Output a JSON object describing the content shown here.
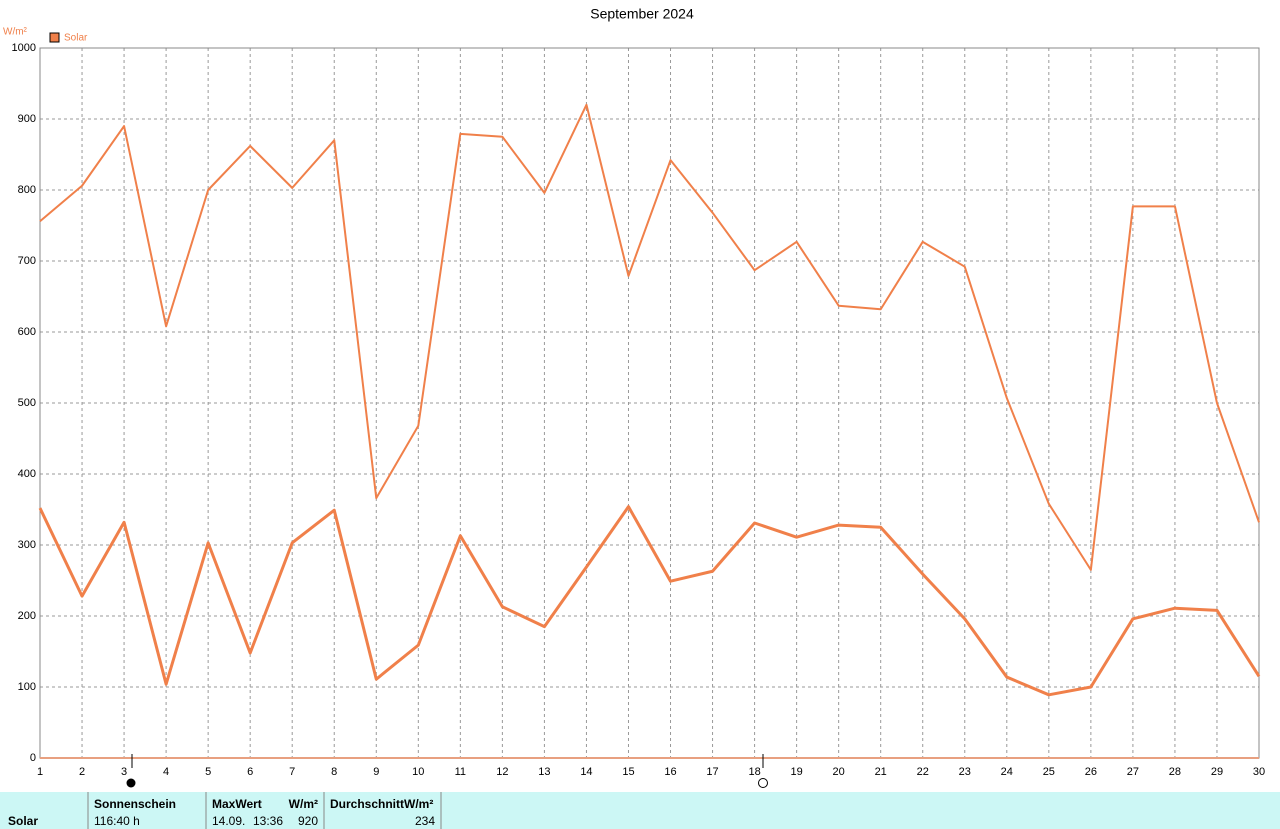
{
  "chart_data": {
    "type": "line",
    "title": "September 2024",
    "y_label": "W/m²",
    "x": [
      1,
      2,
      3,
      4,
      5,
      6,
      7,
      8,
      9,
      10,
      11,
      12,
      13,
      14,
      15,
      16,
      17,
      18,
      19,
      20,
      21,
      22,
      23,
      24,
      25,
      26,
      27,
      28,
      29,
      30
    ],
    "xlim": [
      1,
      30
    ],
    "xticks": [
      1,
      2,
      3,
      4,
      5,
      6,
      7,
      8,
      9,
      10,
      11,
      12,
      13,
      14,
      15,
      16,
      17,
      18,
      19,
      20,
      21,
      22,
      23,
      24,
      25,
      26,
      27,
      28,
      29,
      30
    ],
    "ylim": [
      0,
      1000
    ],
    "yticks": [
      0,
      100,
      200,
      300,
      400,
      500,
      600,
      700,
      800,
      900,
      1000
    ],
    "grid": true,
    "series": [
      {
        "name": "Solar",
        "color": "#f0804a",
        "values": [
          756,
          806,
          890,
          608,
          800,
          862,
          803,
          870,
          366,
          468,
          879,
          875,
          796,
          920,
          679,
          842,
          768,
          687,
          727,
          637,
          632,
          727,
          692,
          507,
          358,
          265,
          777,
          777,
          500,
          332
        ]
      },
      {
        "color": "#f0804a",
        "values": [
          352,
          228,
          332,
          104,
          303,
          148,
          303,
          349,
          111,
          159,
          313,
          213,
          185,
          269,
          354,
          249,
          263,
          331,
          311,
          328,
          325,
          259,
          196,
          114,
          89,
          100,
          196,
          211,
          208,
          115
        ]
      }
    ]
  },
  "table": {
    "header": [
      "Sonnenschein",
      "MaxWert",
      "W/m²",
      "DurchschnittW/m²"
    ],
    "rows": [
      [
        "Solar",
        "116:40 h",
        "14.09.",
        "13:36",
        "920",
        "234"
      ]
    ]
  }
}
